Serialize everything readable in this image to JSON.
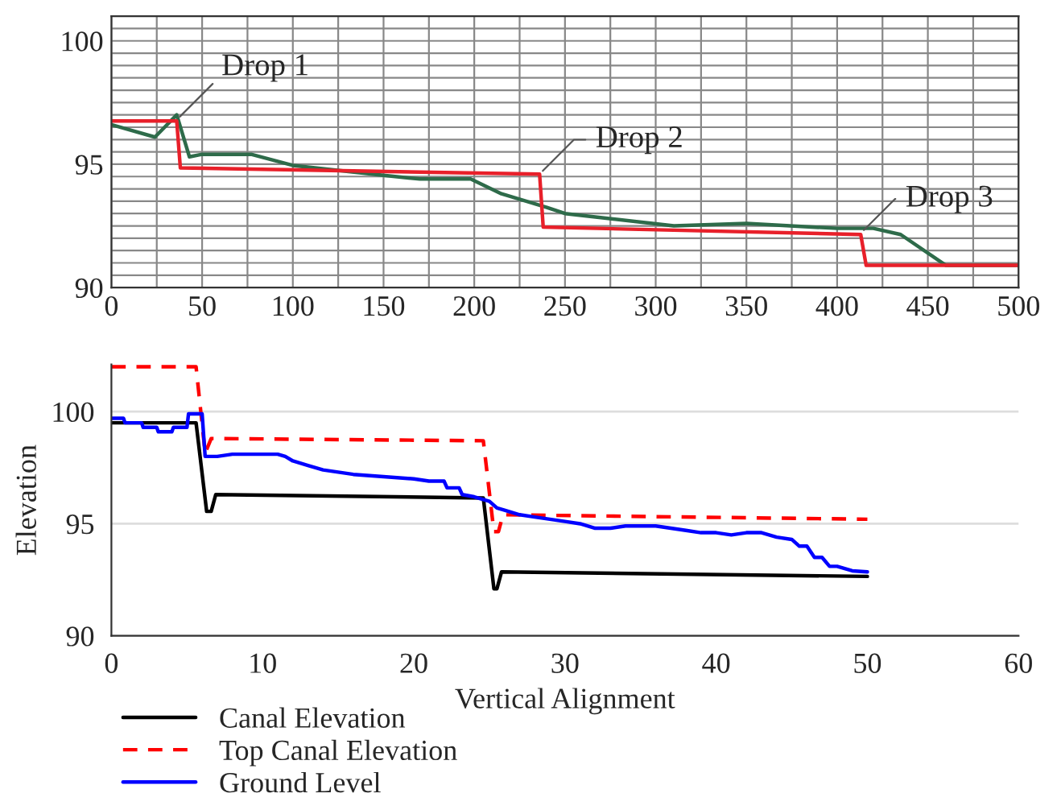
{
  "chart_data": [
    {
      "type": "line",
      "xlim": [
        0,
        500
      ],
      "ylim": [
        90,
        101
      ],
      "grid": true,
      "legend": false,
      "xticks": [
        0,
        {
          "value": 25,
          "label": null
        },
        50,
        {
          "value": 75,
          "label": null
        },
        100,
        {
          "value": 125,
          "label": null
        },
        150,
        {
          "value": 175,
          "label": null
        },
        200,
        {
          "value": 225,
          "label": null
        },
        250,
        {
          "value": 275,
          "label": null
        },
        300,
        {
          "value": 325,
          "label": null
        },
        350,
        {
          "value": 375,
          "label": null
        },
        400,
        {
          "value": 425,
          "label": null
        },
        450,
        {
          "value": 475,
          "label": null
        },
        500
      ],
      "yticks": [
        90,
        {
          "value": 90.5,
          "label": null
        },
        {
          "value": 91,
          "label": null
        },
        {
          "value": 91.5,
          "label": null
        },
        {
          "value": 92,
          "label": null
        },
        {
          "value": 92.5,
          "label": null
        },
        {
          "value": 93,
          "label": null
        },
        {
          "value": 93.5,
          "label": null
        },
        {
          "value": 94,
          "label": null
        },
        {
          "value": 94.5,
          "label": null
        },
        95,
        {
          "value": 95.5,
          "label": null
        },
        {
          "value": 96,
          "label": null
        },
        {
          "value": 96.5,
          "label": null
        },
        {
          "value": 97,
          "label": null
        },
        {
          "value": 97.5,
          "label": null
        },
        {
          "value": 98,
          "label": null
        },
        {
          "value": 98.5,
          "label": null
        },
        {
          "value": 99,
          "label": null
        },
        {
          "value": 99.5,
          "label": null
        },
        100,
        {
          "value": 100.5,
          "label": null
        }
      ],
      "series": [
        {
          "color": "#2e6b4a",
          "line_style": "solid",
          "x": [
            0,
            24,
            36,
            43,
            50,
            77,
            100,
            150,
            170,
            198,
            215,
            240,
            250,
            310,
            350,
            400,
            420,
            435,
            460,
            500
          ],
          "values": [
            96.6,
            96.1,
            97.0,
            95.3,
            95.4,
            95.4,
            94.95,
            94.55,
            94.4,
            94.4,
            93.8,
            93.25,
            93.0,
            92.5,
            92.6,
            92.4,
            92.4,
            92.15,
            90.9,
            90.9
          ]
        },
        {
          "color": "#e8202a",
          "line_style": "solid",
          "x": [
            0,
            36,
            38,
            236,
            238,
            413,
            416,
            500
          ],
          "values": [
            96.75,
            96.75,
            94.85,
            94.6,
            92.45,
            92.15,
            90.9,
            90.9
          ]
        }
      ],
      "annotations": [
        {
          "text": "Drop 1",
          "x": 36,
          "y": 96.8
        },
        {
          "text": "Drop 2",
          "x": 236,
          "y": 94.6
        },
        {
          "text": "Drop 3",
          "x": 413,
          "y": 92.2
        }
      ]
    },
    {
      "type": "line",
      "xlim": [
        0,
        60
      ],
      "ylim": [
        90,
        102.1
      ],
      "xticks": [
        0,
        10,
        20,
        30,
        40,
        50,
        60
      ],
      "yticks": [
        90,
        95,
        100
      ],
      "grid": "y",
      "legend": "bottom left",
      "xlabel": "Vertical Alignment",
      "ylabel": "Elevation",
      "series": [
        {
          "name": "Canal Elevation",
          "color": "#000000",
          "line_style": "solid",
          "x": [
            0,
            5.6,
            6.3,
            6.6,
            6.9,
            24.6,
            25.3,
            25.5,
            25.8,
            50
          ],
          "values": [
            99.5,
            99.5,
            95.55,
            95.55,
            96.3,
            96.15,
            92.1,
            92.1,
            92.85,
            92.65
          ]
        },
        {
          "name": "Top Canal Elevation",
          "color": "#ff0000",
          "line_style": "dashed",
          "x": [
            0,
            5.6,
            6.2,
            6.6,
            24.6,
            25.3,
            25.6,
            25.9,
            50
          ],
          "values": [
            102,
            102,
            98.15,
            98.8,
            98.7,
            94.65,
            94.65,
            95.4,
            95.2
          ]
        },
        {
          "name": "Ground Level",
          "color": "#0000ff",
          "line_style": "solid",
          "x": [
            0,
            0.8,
            0.9,
            2,
            2.1,
            3,
            3.1,
            4,
            4.1,
            5,
            5.1,
            6,
            6.2,
            7,
            8,
            11,
            11.5,
            12,
            13,
            14,
            15,
            16,
            18,
            20,
            21,
            22,
            22.2,
            23,
            23.2,
            24,
            25,
            25.5,
            26,
            27,
            28,
            29,
            30,
            31,
            32,
            33,
            34,
            36,
            37,
            38,
            39,
            40,
            41,
            42,
            43,
            44,
            45,
            45.5,
            46,
            46.5,
            47,
            47.5,
            48,
            49,
            50
          ],
          "values": [
            99.7,
            99.7,
            99.5,
            99.5,
            99.3,
            99.3,
            99.1,
            99.1,
            99.3,
            99.3,
            99.9,
            99.9,
            98.0,
            98.0,
            98.1,
            98.1,
            98.0,
            97.8,
            97.6,
            97.4,
            97.3,
            97.2,
            97.1,
            97.0,
            96.9,
            96.9,
            96.6,
            96.6,
            96.3,
            96.2,
            96.0,
            95.7,
            95.6,
            95.4,
            95.3,
            95.2,
            95.1,
            95.0,
            94.8,
            94.8,
            94.9,
            94.9,
            94.8,
            94.7,
            94.6,
            94.6,
            94.5,
            94.6,
            94.6,
            94.4,
            94.3,
            94.0,
            94.0,
            93.5,
            93.5,
            93.1,
            93.1,
            92.9,
            92.85
          ]
        }
      ]
    }
  ]
}
